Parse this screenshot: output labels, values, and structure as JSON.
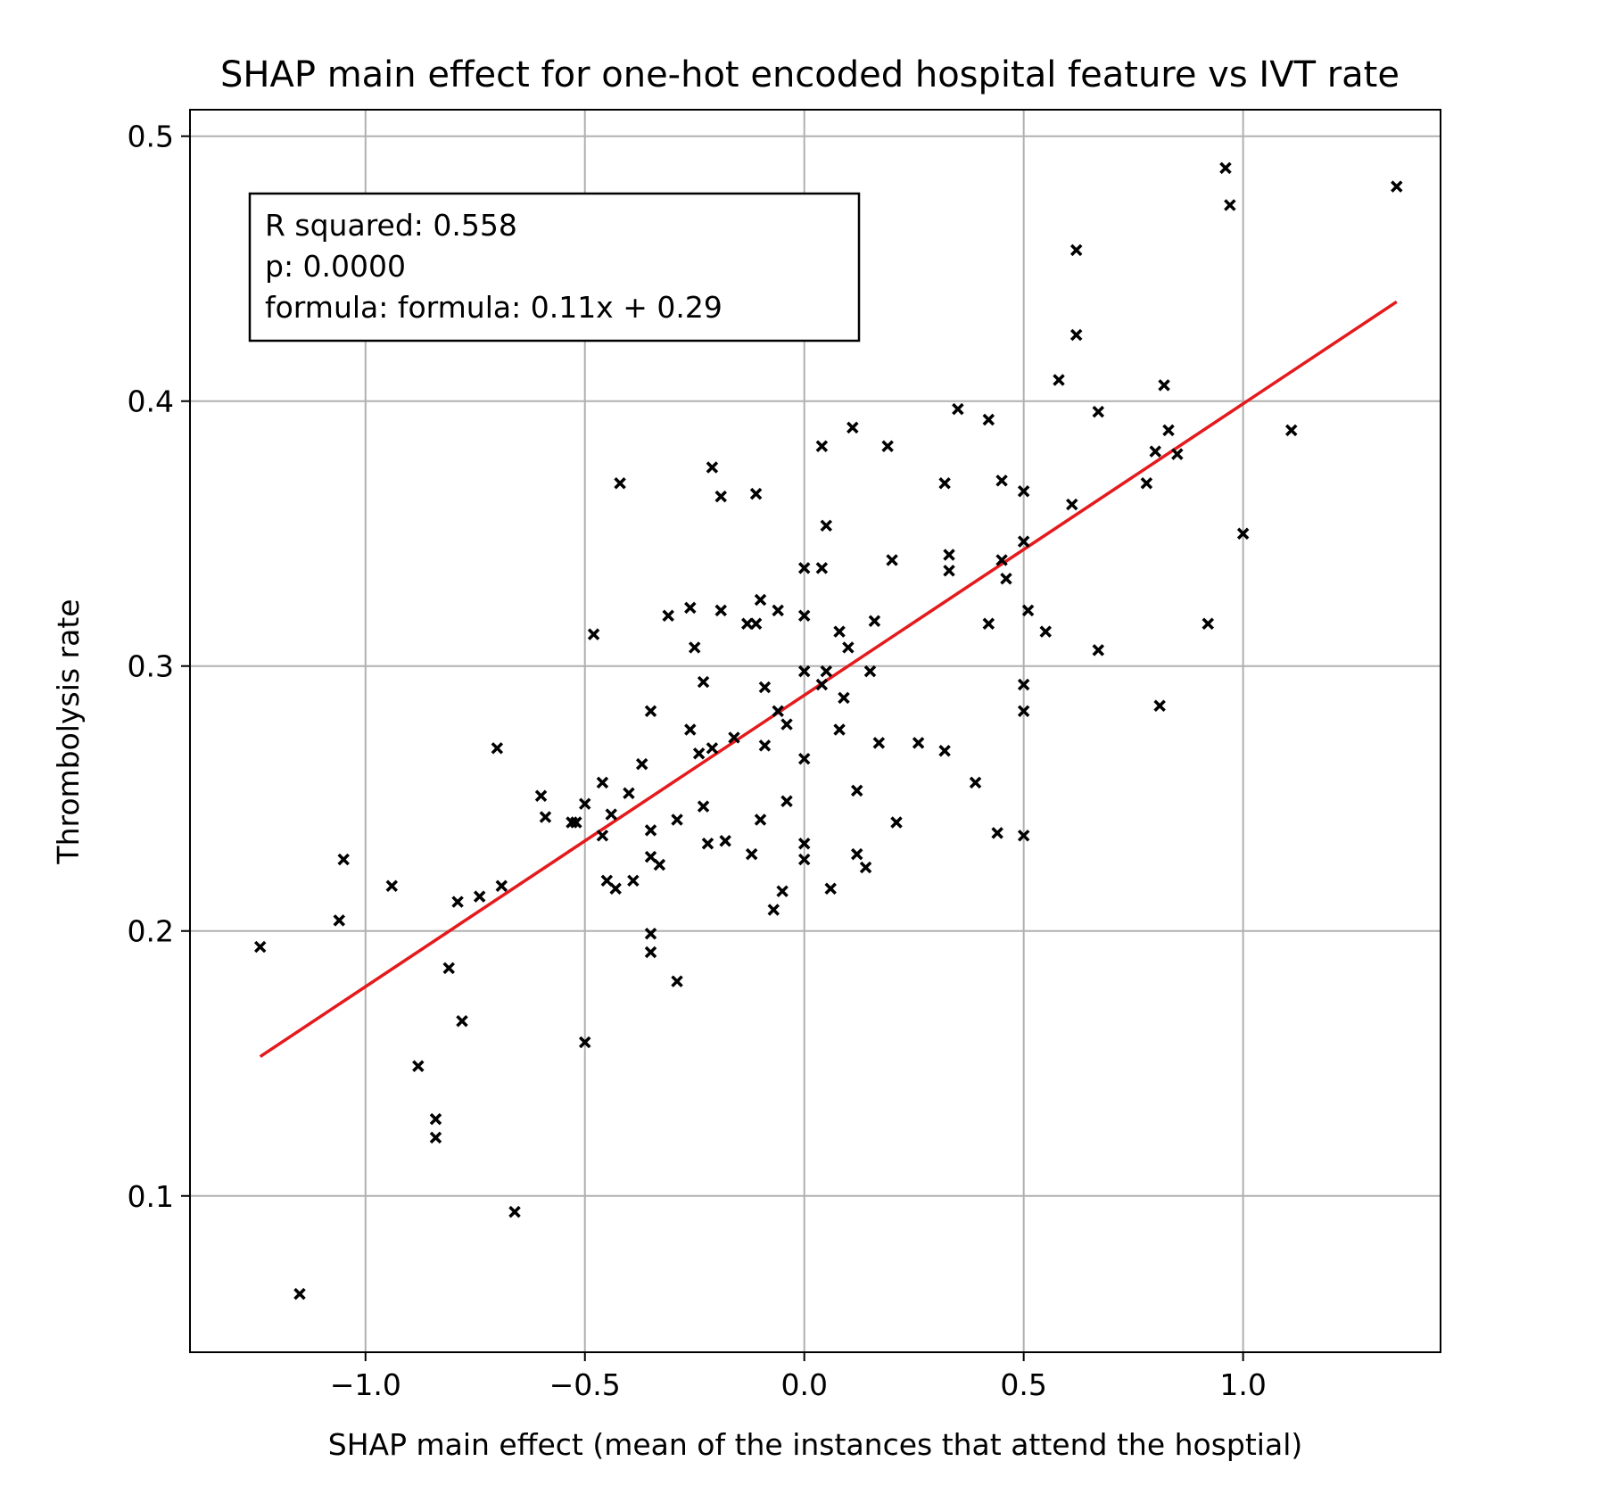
{
  "chart_data": {
    "type": "scatter",
    "title": "SHAP main effect for one-hot encoded hospital feature vs IVT rate",
    "xlabel": "SHAP main effect (mean of the instances that attend the hosptial)",
    "ylabel": "Thrombolysis rate",
    "xlim": [
      -1.4,
      1.45
    ],
    "ylim": [
      0.041,
      0.51
    ],
    "x_ticks": [
      -1.0,
      -0.5,
      0.0,
      0.5,
      1.0
    ],
    "x_tick_labels": [
      "−1.0",
      "−0.5",
      "0.0",
      "0.5",
      "1.0"
    ],
    "y_ticks": [
      0.1,
      0.2,
      0.3,
      0.4,
      0.5
    ],
    "y_tick_labels": [
      "0.1",
      "0.2",
      "0.3",
      "0.4",
      "0.5"
    ],
    "grid": true,
    "marker": "x",
    "marker_color": "#000000",
    "line_color": "#e41a1c",
    "annotation": {
      "lines": [
        "R squared: 0.558",
        "p: 0.0000",
        "formula: formula: 0.11x + 0.29"
      ],
      "placement": "top-left"
    },
    "fit_line": {
      "slope": 0.11,
      "intercept": 0.289,
      "x_range": [
        -1.24,
        1.35
      ]
    },
    "points": [
      [
        -1.24,
        0.194
      ],
      [
        -1.15,
        0.063
      ],
      [
        -1.06,
        0.204
      ],
      [
        -1.05,
        0.227
      ],
      [
        -0.94,
        0.217
      ],
      [
        -0.88,
        0.149
      ],
      [
        -0.84,
        0.129
      ],
      [
        -0.84,
        0.122
      ],
      [
        -0.81,
        0.186
      ],
      [
        -0.79,
        0.211
      ],
      [
        -0.78,
        0.166
      ],
      [
        -0.74,
        0.213
      ],
      [
        -0.7,
        0.269
      ],
      [
        -0.69,
        0.217
      ],
      [
        -0.66,
        0.094
      ],
      [
        -0.6,
        0.251
      ],
      [
        -0.59,
        0.243
      ],
      [
        -0.53,
        0.241
      ],
      [
        -0.52,
        0.241
      ],
      [
        -0.5,
        0.158
      ],
      [
        -0.5,
        0.248
      ],
      [
        -0.48,
        0.312
      ],
      [
        -0.46,
        0.256
      ],
      [
        -0.46,
        0.236
      ],
      [
        -0.45,
        0.219
      ],
      [
        -0.44,
        0.244
      ],
      [
        -0.43,
        0.216
      ],
      [
        -0.42,
        0.369
      ],
      [
        -0.4,
        0.252
      ],
      [
        -0.39,
        0.219
      ],
      [
        -0.37,
        0.263
      ],
      [
        -0.35,
        0.199
      ],
      [
        -0.35,
        0.192
      ],
      [
        -0.35,
        0.238
      ],
      [
        -0.35,
        0.228
      ],
      [
        -0.35,
        0.283
      ],
      [
        -0.33,
        0.225
      ],
      [
        -0.31,
        0.319
      ],
      [
        -0.29,
        0.181
      ],
      [
        -0.29,
        0.242
      ],
      [
        -0.26,
        0.276
      ],
      [
        -0.26,
        0.322
      ],
      [
        -0.25,
        0.307
      ],
      [
        -0.24,
        0.267
      ],
      [
        -0.23,
        0.294
      ],
      [
        -0.23,
        0.247
      ],
      [
        -0.22,
        0.233
      ],
      [
        -0.21,
        0.269
      ],
      [
        -0.21,
        0.375
      ],
      [
        -0.19,
        0.364
      ],
      [
        -0.19,
        0.321
      ],
      [
        -0.18,
        0.234
      ],
      [
        -0.16,
        0.273
      ],
      [
        -0.13,
        0.316
      ],
      [
        -0.12,
        0.229
      ],
      [
        -0.11,
        0.365
      ],
      [
        -0.11,
        0.316
      ],
      [
        -0.1,
        0.242
      ],
      [
        -0.1,
        0.325
      ],
      [
        -0.09,
        0.292
      ],
      [
        -0.09,
        0.27
      ],
      [
        -0.07,
        0.208
      ],
      [
        -0.06,
        0.283
      ],
      [
        -0.06,
        0.321
      ],
      [
        -0.05,
        0.215
      ],
      [
        -0.04,
        0.278
      ],
      [
        -0.04,
        0.249
      ],
      [
        0.0,
        0.337
      ],
      [
        0.0,
        0.319
      ],
      [
        0.0,
        0.298
      ],
      [
        0.0,
        0.265
      ],
      [
        0.0,
        0.233
      ],
      [
        0.0,
        0.227
      ],
      [
        0.04,
        0.383
      ],
      [
        0.04,
        0.293
      ],
      [
        0.04,
        0.337
      ],
      [
        0.05,
        0.298
      ],
      [
        0.05,
        0.353
      ],
      [
        0.06,
        0.216
      ],
      [
        0.08,
        0.313
      ],
      [
        0.08,
        0.276
      ],
      [
        0.09,
        0.288
      ],
      [
        0.1,
        0.307
      ],
      [
        0.11,
        0.39
      ],
      [
        0.12,
        0.229
      ],
      [
        0.12,
        0.253
      ],
      [
        0.14,
        0.224
      ],
      [
        0.15,
        0.298
      ],
      [
        0.16,
        0.317
      ],
      [
        0.17,
        0.271
      ],
      [
        0.19,
        0.383
      ],
      [
        0.2,
        0.34
      ],
      [
        0.21,
        0.241
      ],
      [
        0.26,
        0.271
      ],
      [
        0.32,
        0.268
      ],
      [
        0.32,
        0.369
      ],
      [
        0.33,
        0.342
      ],
      [
        0.33,
        0.336
      ],
      [
        0.35,
        0.397
      ],
      [
        0.39,
        0.256
      ],
      [
        0.42,
        0.393
      ],
      [
        0.42,
        0.316
      ],
      [
        0.44,
        0.237
      ],
      [
        0.45,
        0.37
      ],
      [
        0.45,
        0.34
      ],
      [
        0.46,
        0.333
      ],
      [
        0.5,
        0.366
      ],
      [
        0.5,
        0.347
      ],
      [
        0.5,
        0.293
      ],
      [
        0.5,
        0.283
      ],
      [
        0.5,
        0.236
      ],
      [
        0.51,
        0.321
      ],
      [
        0.55,
        0.313
      ],
      [
        0.58,
        0.408
      ],
      [
        0.61,
        0.361
      ],
      [
        0.62,
        0.457
      ],
      [
        0.62,
        0.425
      ],
      [
        0.67,
        0.396
      ],
      [
        0.67,
        0.306
      ],
      [
        0.78,
        0.369
      ],
      [
        0.8,
        0.381
      ],
      [
        0.81,
        0.285
      ],
      [
        0.82,
        0.406
      ],
      [
        0.83,
        0.389
      ],
      [
        0.85,
        0.38
      ],
      [
        0.92,
        0.316
      ],
      [
        0.96,
        0.488
      ],
      [
        0.97,
        0.474
      ],
      [
        1.0,
        0.35
      ],
      [
        1.11,
        0.389
      ],
      [
        1.35,
        0.481
      ]
    ]
  }
}
